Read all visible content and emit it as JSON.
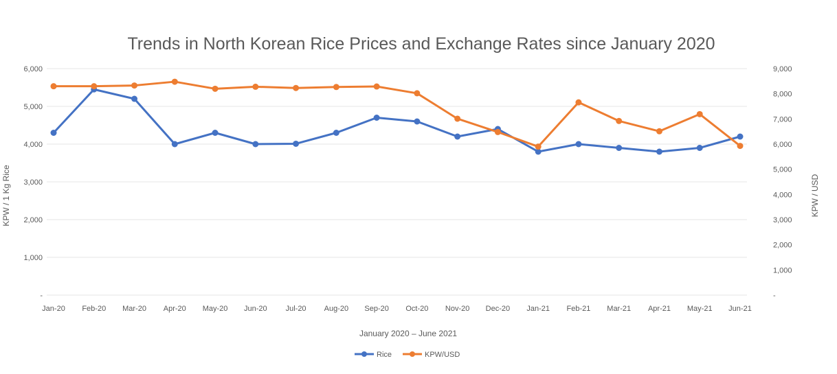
{
  "chart_data": {
    "type": "line",
    "title": "Trends in North Korean Rice Prices and Exchange Rates since January 2020",
    "xlabel": "January 2020 – June 2021",
    "ylabel": "KPW / 1 Kg Rice",
    "y2label": "KPW / USD",
    "categories": [
      "Jan-20",
      "Feb-20",
      "Mar-20",
      "Apr-20",
      "May-20",
      "Jun-20",
      "Jul-20",
      "Aug-20",
      "Sep-20",
      "Oct-20",
      "Nov-20",
      "Dec-20",
      "Jan-21",
      "Feb-21",
      "Mar-21",
      "Apr-21",
      "May-21",
      "Jun-21"
    ],
    "ylim": [
      0,
      6000
    ],
    "y_ticks": [
      "-",
      "1,000",
      "2,000",
      "3,000",
      "4,000",
      "5,000",
      "6,000"
    ],
    "y2lim": [
      0,
      9000
    ],
    "y2_ticks": [
      "-",
      "1,000",
      "2,000",
      "3,000",
      "4,000",
      "5,000",
      "6,000",
      "7,000",
      "8,000",
      "9,000"
    ],
    "grid": true,
    "legend_position": "bottom",
    "series": [
      {
        "name": "Rice",
        "axis": "left",
        "color": "#4472c4",
        "values": [
          4300,
          5450,
          5200,
          4000,
          4300,
          4000,
          4010,
          4300,
          4700,
          4600,
          4200,
          4400,
          3800,
          4000,
          3900,
          3800,
          3900,
          4200
        ]
      },
      {
        "name": "KPW/USD",
        "axis": "right",
        "color": "#ed7d31",
        "values": [
          8300,
          8300,
          8330,
          8480,
          8200,
          8280,
          8230,
          8270,
          8290,
          8020,
          7010,
          6480,
          5900,
          7660,
          6920,
          6510,
          7190,
          5930
        ]
      }
    ]
  }
}
